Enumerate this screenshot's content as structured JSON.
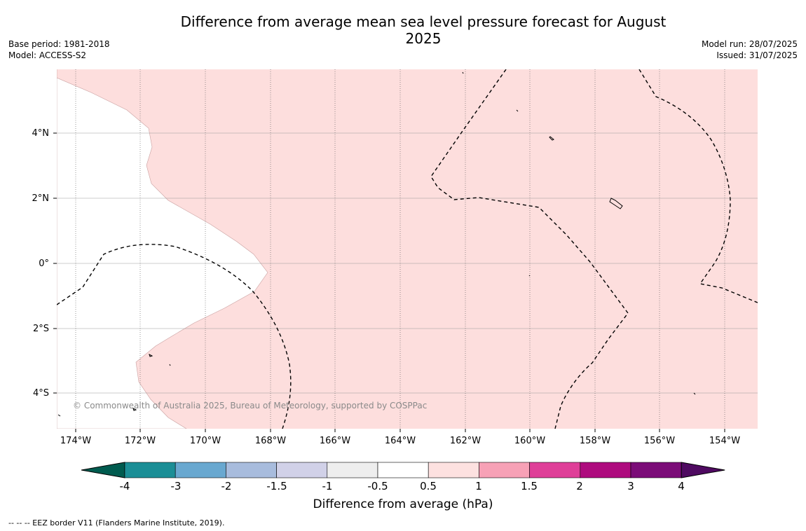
{
  "title": "Difference from average mean sea level pressure forecast for August 2025",
  "meta": {
    "base_period": "Base period: 1981-2018",
    "model": "Model: ACCESS-S2",
    "model_run": "Model run: 28/07/2025",
    "issued": "Issued: 31/07/2025"
  },
  "map": {
    "lat_labels": [
      "4°N",
      "2°N",
      "0°",
      "2°S",
      "4°S"
    ],
    "lon_labels": [
      "174°W",
      "172°W",
      "170°W",
      "168°W",
      "166°W",
      "164°W",
      "162°W",
      "160°W",
      "158°W",
      "156°W",
      "154°W"
    ],
    "copyright": "© Commonwealth of Australia 2025, Bureau of Meteorology, supported by COSPPac",
    "fill_color_0_5_to_1": "#fddedd",
    "eez_line_style": "dashed black"
  },
  "colorbar": {
    "label": "Difference from average (hPa)",
    "ticks": [
      "-4",
      "-3",
      "-2",
      "-1.5",
      "-1",
      "-0.5",
      "0.5",
      "1",
      "1.5",
      "2",
      "3",
      "4"
    ],
    "colors": [
      "#005b4f",
      "#1b8e96",
      "#69a8d0",
      "#a8bcdd",
      "#d1d1e8",
      "#eeeeee",
      "#ffffff",
      "#fde1e0",
      "#f7a1b6",
      "#df3f98",
      "#ae0b7e",
      "#7b0c78",
      "#4f0a61"
    ]
  },
  "footnote": "-- -- -- EEZ border V11 (Flanders Marine Institute, 2019)."
}
